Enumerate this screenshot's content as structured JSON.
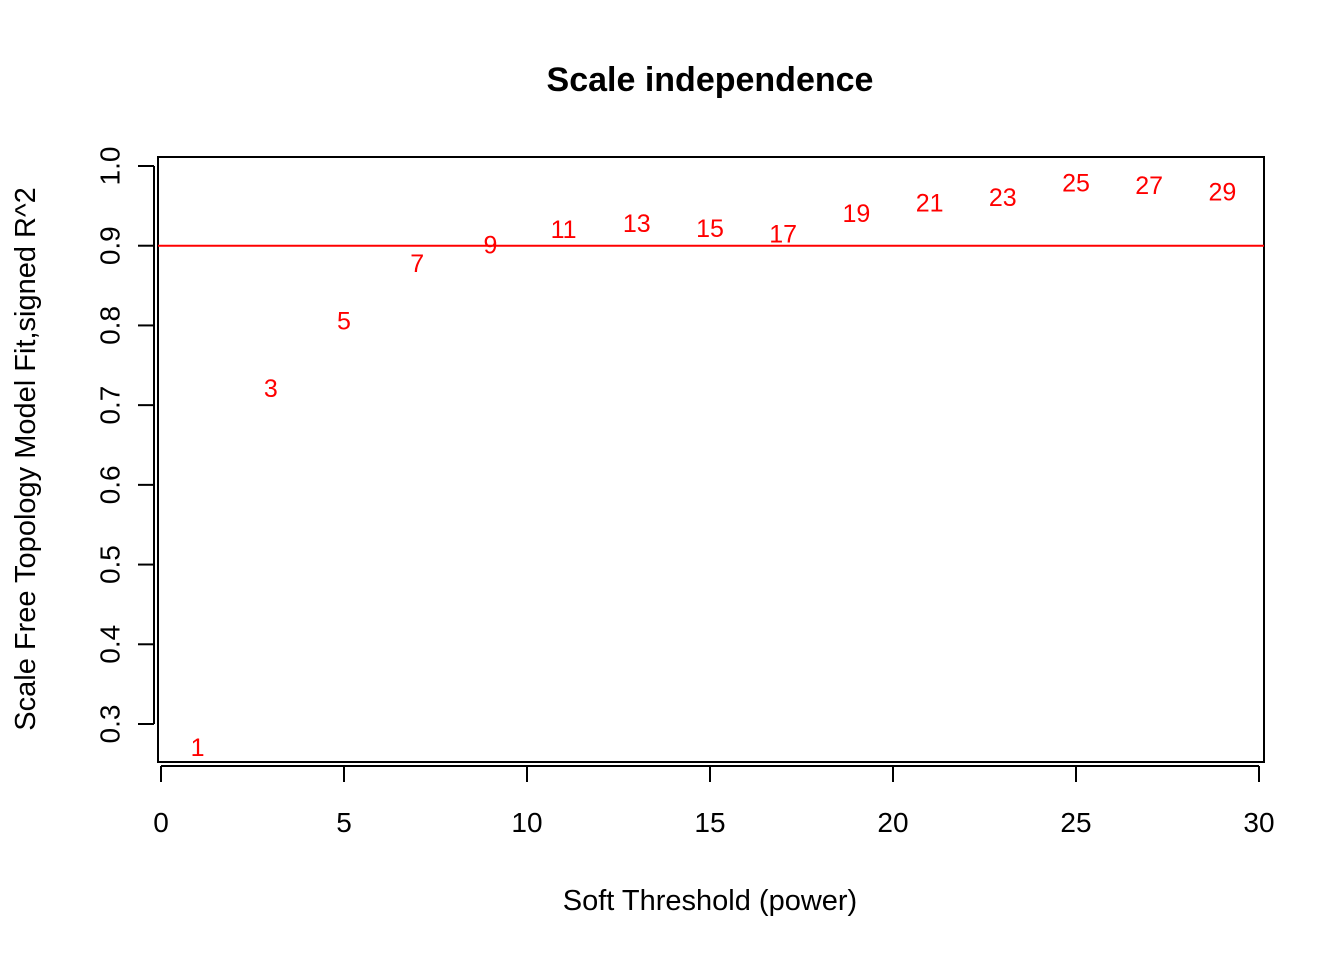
{
  "chart_data": {
    "type": "scatter",
    "title": "Scale independence",
    "xlabel": "Soft Threshold (power)",
    "ylabel": "Scale Free Topology Model Fit,signed R^2",
    "xlim": [
      0,
      30
    ],
    "ylim": [
      0.25,
      1.0
    ],
    "xticks": [
      0,
      5,
      10,
      15,
      20,
      25,
      30
    ],
    "yticks": [
      0.3,
      0.4,
      0.5,
      0.6,
      0.7,
      0.8,
      0.9,
      1.0
    ],
    "ytick_labels": [
      "0.3",
      "0.4",
      "0.5",
      "0.6",
      "0.7",
      "0.8",
      "0.9",
      "1.0"
    ],
    "points": [
      {
        "x": 1,
        "y": 0.27,
        "label": "1"
      },
      {
        "x": 3,
        "y": 0.72,
        "label": "3"
      },
      {
        "x": 5,
        "y": 0.805,
        "label": "5"
      },
      {
        "x": 7,
        "y": 0.877,
        "label": "7"
      },
      {
        "x": 9,
        "y": 0.9,
        "label": "9"
      },
      {
        "x": 11,
        "y": 0.92,
        "label": "11"
      },
      {
        "x": 13,
        "y": 0.927,
        "label": "13"
      },
      {
        "x": 15,
        "y": 0.921,
        "label": "15"
      },
      {
        "x": 17,
        "y": 0.914,
        "label": "17"
      },
      {
        "x": 19,
        "y": 0.94,
        "label": "19"
      },
      {
        "x": 21,
        "y": 0.953,
        "label": "21"
      },
      {
        "x": 23,
        "y": 0.96,
        "label": "23"
      },
      {
        "x": 25,
        "y": 0.978,
        "label": "25"
      },
      {
        "x": 27,
        "y": 0.975,
        "label": "27"
      },
      {
        "x": 29,
        "y": 0.967,
        "label": "29"
      }
    ],
    "reference_line": {
      "y": 0.9,
      "color": "#ff0000"
    },
    "label_color": "#ff0000",
    "grid": false,
    "legend": false
  }
}
